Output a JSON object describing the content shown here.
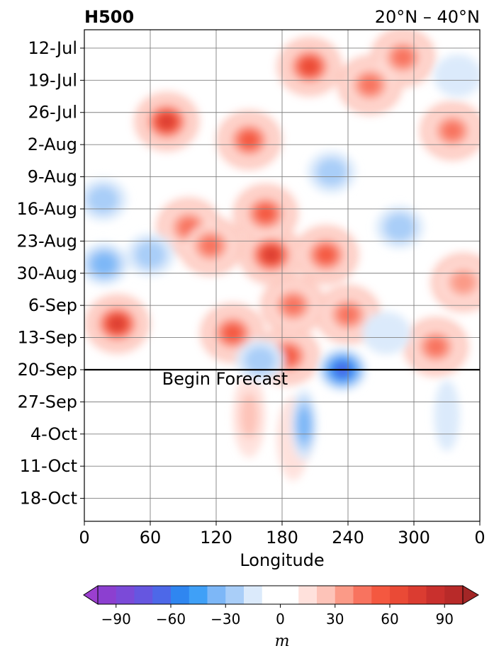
{
  "chart_data": {
    "type": "heatmap",
    "title": "H500",
    "subtitle": "20°N – 40°N",
    "xlabel": "Longitude",
    "ylabel": "",
    "x_ticks": [
      "0",
      "60",
      "120",
      "180",
      "240",
      "300",
      "0"
    ],
    "xlim": [
      0,
      360
    ],
    "y_ticks": [
      "12-Jul",
      "19-Jul",
      "26-Jul",
      "2-Aug",
      "9-Aug",
      "16-Aug",
      "23-Aug",
      "30-Aug",
      "6-Sep",
      "13-Sep",
      "20-Sep",
      "27-Sep",
      "4-Oct",
      "11-Oct",
      "18-Oct"
    ],
    "ylim": [
      "2024-07-08",
      "2024-10-23"
    ],
    "forecast_start": "2024-09-20",
    "forecast_label": "Begin Forecast",
    "grid": true,
    "colorbar": {
      "label": "m",
      "levels": [
        -100,
        -90,
        -80,
        -70,
        -60,
        -50,
        -40,
        -30,
        -20,
        -10,
        10,
        20,
        30,
        40,
        50,
        60,
        70,
        80,
        90,
        100
      ],
      "tick_values": [
        -90,
        -60,
        -30,
        0,
        30,
        60,
        90
      ],
      "tick_labels": [
        "−90",
        "−60",
        "−30",
        "0",
        "30",
        "60",
        "90"
      ],
      "colors": [
        "#8c3fd0",
        "#7b4ad8",
        "#6656e0",
        "#4d68e8",
        "#2f86f0",
        "#3fa0f7",
        "#7db7f7",
        "#a9cef8",
        "#dbeafb",
        "#ffffff",
        "#ffe1dc",
        "#fdc3b8",
        "#fb9a87",
        "#f8735f",
        "#f45840",
        "#ea4a36",
        "#db3c31",
        "#c9302d",
        "#b82a29"
      ],
      "under_color": "#9b3fcf",
      "over_color": "#a32626"
    },
    "features": [
      {
        "lon": 30,
        "date": "2024-09-10",
        "value": 70
      },
      {
        "lon": 75,
        "date": "2024-07-28",
        "value": 65
      },
      {
        "lon": 170,
        "date": "2024-08-26",
        "value": 65
      },
      {
        "lon": 205,
        "date": "2024-07-16",
        "value": 55
      },
      {
        "lon": 150,
        "date": "2024-08-01",
        "value": 50
      },
      {
        "lon": 165,
        "date": "2024-08-17",
        "value": 50
      },
      {
        "lon": 220,
        "date": "2024-08-26",
        "value": 45
      },
      {
        "lon": 135,
        "date": "2024-09-12",
        "value": 50
      },
      {
        "lon": 190,
        "date": "2024-09-06",
        "value": 40
      },
      {
        "lon": 95,
        "date": "2024-08-20",
        "value": 35
      },
      {
        "lon": 115,
        "date": "2024-08-24",
        "value": 40
      },
      {
        "lon": 260,
        "date": "2024-07-20",
        "value": 35
      },
      {
        "lon": 290,
        "date": "2024-07-14",
        "value": 35
      },
      {
        "lon": 240,
        "date": "2024-09-08",
        "value": 40
      },
      {
        "lon": 320,
        "date": "2024-09-15",
        "value": 35
      },
      {
        "lon": 335,
        "date": "2024-07-30",
        "value": 40
      },
      {
        "lon": 345,
        "date": "2024-09-01",
        "value": 30
      },
      {
        "lon": 185,
        "date": "2024-09-17",
        "value": 45
      },
      {
        "lon": 150,
        "date": "2024-09-30",
        "value": 18
      },
      {
        "lon": 190,
        "date": "2024-10-05",
        "value": 12
      },
      {
        "lon": 235,
        "date": "2024-09-20",
        "value": -55
      },
      {
        "lon": 18,
        "date": "2024-08-28",
        "value": -30
      },
      {
        "lon": 17,
        "date": "2024-08-14",
        "value": -22
      },
      {
        "lon": 200,
        "date": "2024-10-02",
        "value": -25
      },
      {
        "lon": 287,
        "date": "2024-08-20",
        "value": -22
      },
      {
        "lon": 160,
        "date": "2024-09-18",
        "value": -22
      },
      {
        "lon": 225,
        "date": "2024-08-08",
        "value": -15
      },
      {
        "lon": 60,
        "date": "2024-08-26",
        "value": -15
      },
      {
        "lon": 275,
        "date": "2024-09-12",
        "value": -12
      },
      {
        "lon": 330,
        "date": "2024-09-30",
        "value": -12
      },
      {
        "lon": 340,
        "date": "2024-07-18",
        "value": -10
      }
    ]
  }
}
